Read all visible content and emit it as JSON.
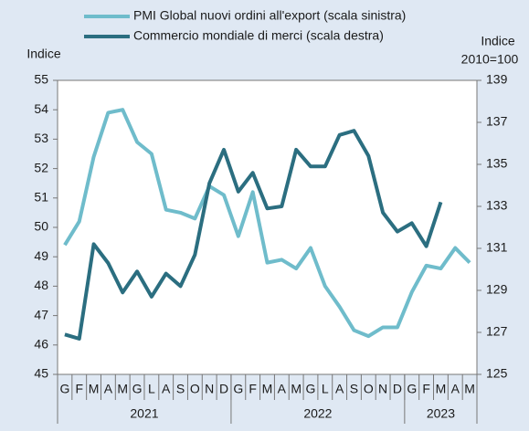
{
  "chart_data": {
    "type": "line",
    "legend": "top",
    "y_label": "Indice",
    "y2_label": [
      "Indice",
      "2010=100"
    ],
    "categories": [
      "G",
      "F",
      "M",
      "A",
      "M",
      "G",
      "L",
      "A",
      "S",
      "O",
      "N",
      "D",
      "G",
      "F",
      "M",
      "A",
      "M",
      "G",
      "L",
      "A",
      "S",
      "O",
      "N",
      "D",
      "G",
      "F",
      "M",
      "A",
      "M"
    ],
    "years": [
      {
        "label": "2021",
        "span": 12
      },
      {
        "label": "2022",
        "span": 12
      },
      {
        "label": "2023",
        "span": 5
      }
    ],
    "ylim": [
      45,
      55
    ],
    "yticks": [
      45,
      46,
      47,
      48,
      49,
      50,
      51,
      52,
      53,
      54,
      55
    ],
    "y2lim": [
      125,
      139
    ],
    "y2ticks": [
      125,
      127,
      129,
      131,
      133,
      135,
      137,
      139
    ],
    "series": [
      {
        "name": "PMI Global nuovi ordini all'export (scala sinistra)",
        "color": "#6fbccb",
        "axis": "y",
        "values": [
          49.4,
          50.2,
          52.4,
          53.9,
          54.0,
          52.9,
          52.5,
          50.6,
          50.5,
          50.3,
          51.4,
          51.1,
          49.7,
          51.2,
          48.8,
          48.9,
          48.6,
          49.3,
          48.0,
          47.3,
          46.5,
          46.3,
          46.6,
          46.6,
          47.8,
          48.7,
          48.6,
          49.3,
          48.8
        ]
      },
      {
        "name": "Commercio mondiale di merci (scala destra)",
        "color": "#2b6e80",
        "axis": "y2",
        "values": [
          126.9,
          126.7,
          131.2,
          130.3,
          128.9,
          129.9,
          128.7,
          129.8,
          129.2,
          130.7,
          134.1,
          135.7,
          133.7,
          134.6,
          132.9,
          133.0,
          135.7,
          134.9,
          134.9,
          136.4,
          136.6,
          135.4,
          132.7,
          131.8,
          132.2,
          131.1,
          133.2,
          null,
          null
        ]
      }
    ]
  }
}
